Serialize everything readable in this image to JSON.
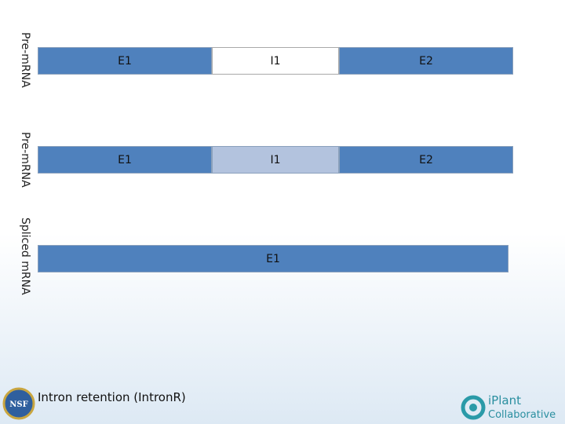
{
  "rows": [
    {
      "label": "Pre-mRNA",
      "segments": [
        {
          "label": "E1"
        },
        {
          "label": "I1"
        },
        {
          "label": "E2"
        }
      ]
    },
    {
      "label": "Pre-mRNA",
      "segments": [
        {
          "label": "E1"
        },
        {
          "label": "I1"
        },
        {
          "label": "E2"
        }
      ]
    },
    {
      "label": "Spliced mRNA",
      "segments": [
        {
          "label": "E1"
        }
      ]
    }
  ],
  "footer": {
    "caption": "Intron retention (IntronR)",
    "logo_left": "NSF",
    "logo_right": {
      "line1": "iPlant",
      "line2": "Collaborative"
    }
  }
}
